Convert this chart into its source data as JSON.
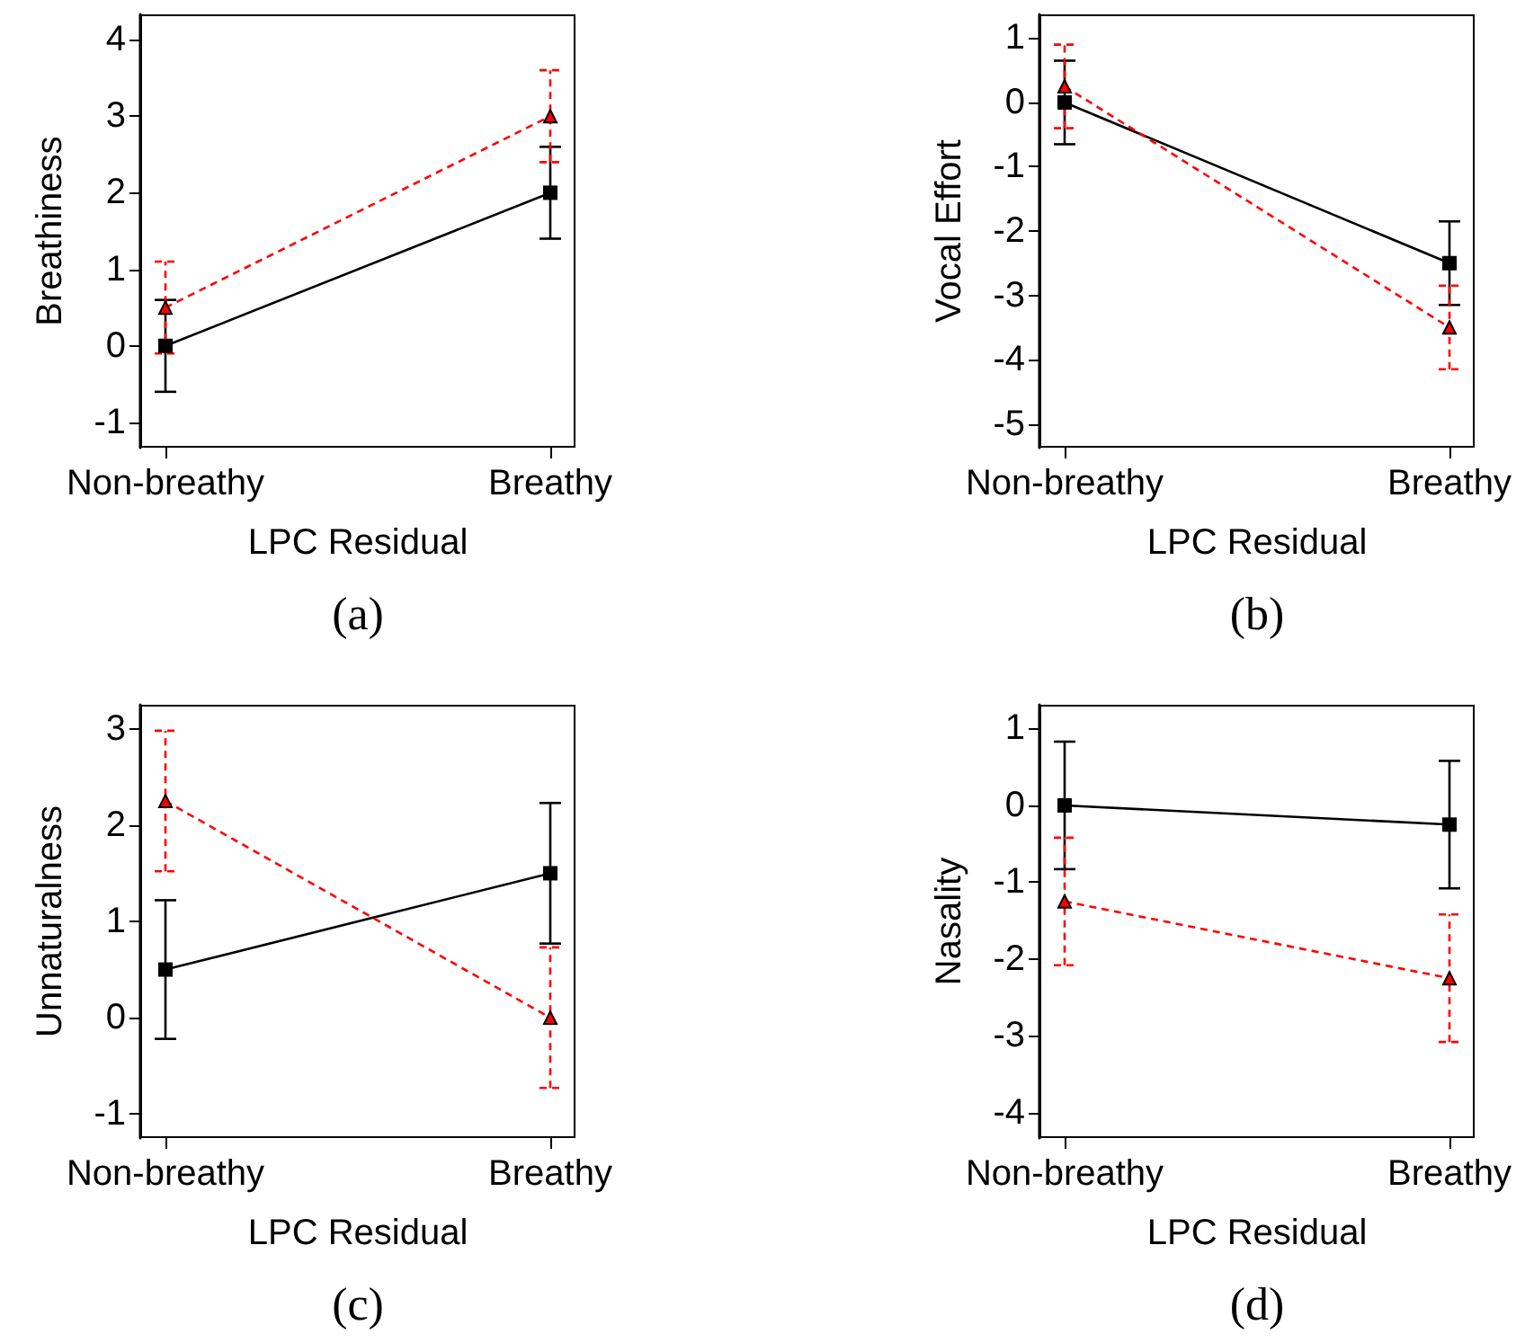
{
  "chart_data": [
    {
      "type": "line",
      "ylabel": "Breathiness",
      "xlabel": "LPC Residual",
      "categories": [
        "Non-breathy",
        "Breathy"
      ],
      "ylim": [
        -1.33,
        4.33
      ],
      "yticks": [
        -1,
        0,
        1,
        2,
        3,
        4
      ],
      "annotations": [
        "(a)"
      ],
      "series": [
        {
          "color": "#000000",
          "marker": "square",
          "line_style": "solid",
          "values": [
            0,
            2
          ],
          "errors": [
            [
              -0.6,
              0.6
            ],
            [
              1.4,
              2.6
            ]
          ]
        },
        {
          "color": "#ff0000",
          "marker": "triangle",
          "line_style": "dashed",
          "values": [
            0.5,
            3
          ],
          "errors": [
            [
              -0.1,
              1.1
            ],
            [
              2.4,
              3.6
            ]
          ]
        }
      ]
    },
    {
      "type": "line",
      "ylabel": "Vocal Effort",
      "xlabel": "LPC Residual",
      "categories": [
        "Non-breathy",
        "Breathy"
      ],
      "ylim": [
        -5.37,
        1.37
      ],
      "yticks": [
        -5,
        -4,
        -3,
        -2,
        -1,
        0,
        1
      ],
      "annotations": [
        "(b)"
      ],
      "series": [
        {
          "color": "#000000",
          "marker": "square",
          "line_style": "solid",
          "values": [
            0,
            -2.5
          ],
          "errors": [
            [
              -0.65,
              0.65
            ],
            [
              -3.15,
              -1.85
            ]
          ]
        },
        {
          "color": "#ff0000",
          "marker": "triangle",
          "line_style": "dashed",
          "values": [
            0.25,
            -3.5
          ],
          "errors": [
            [
              -0.4,
              0.9
            ],
            [
              -4.15,
              -2.85
            ]
          ]
        }
      ]
    },
    {
      "type": "line",
      "ylabel": "Unnaturalness",
      "xlabel": "LPC Residual",
      "categories": [
        "Non-breathy",
        "Breathy"
      ],
      "ylim": [
        -1.25,
        3.25
      ],
      "yticks": [
        -1,
        0,
        1,
        2,
        3
      ],
      "annotations": [
        "(c)"
      ],
      "series": [
        {
          "color": "#000000",
          "marker": "square",
          "line_style": "solid",
          "values": [
            0.5,
            1.5
          ],
          "errors": [
            [
              -0.22,
              1.22
            ],
            [
              0.77,
              2.23
            ]
          ]
        },
        {
          "color": "#ff0000",
          "marker": "triangle",
          "line_style": "dashed",
          "values": [
            2.25,
            0
          ],
          "errors": [
            [
              1.52,
              2.98
            ],
            [
              -0.73,
              0.73
            ]
          ]
        }
      ]
    },
    {
      "type": "line",
      "ylabel": "Nasality",
      "xlabel": "LPC Residual",
      "categories": [
        "Non-breathy",
        "Breathy"
      ],
      "ylim": [
        -4.33,
        1.31
      ],
      "yticks": [
        -4,
        -3,
        -2,
        -1,
        0,
        1
      ],
      "annotations": [
        "(d)"
      ],
      "series": [
        {
          "color": "#000000",
          "marker": "square",
          "line_style": "solid",
          "values": [
            0,
            -0.25
          ],
          "errors": [
            [
              -0.83,
              0.83
            ],
            [
              -1.08,
              0.58
            ]
          ]
        },
        {
          "color": "#ff0000",
          "marker": "triangle",
          "line_style": "dashed",
          "values": [
            -1.25,
            -2.25
          ],
          "errors": [
            [
              -2.08,
              -0.42
            ],
            [
              -3.08,
              -1.42
            ]
          ]
        }
      ]
    }
  ]
}
